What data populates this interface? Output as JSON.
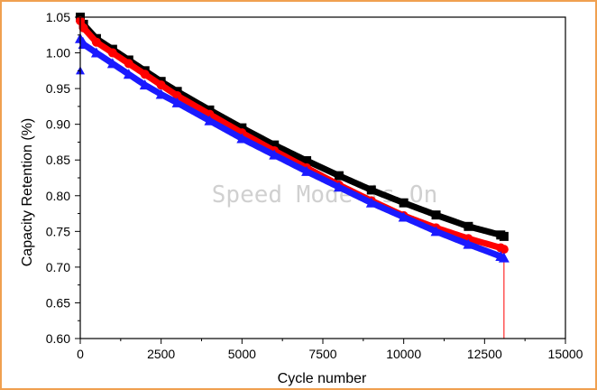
{
  "chart_data": {
    "type": "scatter",
    "title": "",
    "xlabel": "Cycle number",
    "ylabel": "Capacity Retention (%)",
    "xlim": [
      0,
      15000
    ],
    "ylim": [
      0.6,
      1.05
    ],
    "xticks": [
      0,
      2500,
      5000,
      7500,
      10000,
      12500,
      15000
    ],
    "xtick_labels": [
      "0",
      "2500",
      "5000",
      "7500",
      "10000",
      "12500",
      "15000"
    ],
    "yticks": [
      0.6,
      0.65,
      0.7,
      0.75,
      0.8,
      0.85,
      0.9,
      0.95,
      1.0,
      1.05
    ],
    "ytick_labels": [
      "0.60",
      "0.65",
      "0.70",
      "0.75",
      "0.80",
      "0.85",
      "0.90",
      "0.95",
      "1.00",
      "1.05"
    ],
    "grid": false,
    "watermark": "Speed Mode is On",
    "series": [
      {
        "name": "black",
        "color": "#000000",
        "marker": "square",
        "x": [
          0,
          100,
          500,
          1000,
          1500,
          2000,
          2500,
          3000,
          4000,
          5000,
          6000,
          7000,
          8000,
          9000,
          10000,
          11000,
          12000,
          13000,
          13100
        ],
        "y": [
          1.05,
          1.04,
          1.02,
          1.005,
          0.99,
          0.975,
          0.96,
          0.946,
          0.92,
          0.895,
          0.871,
          0.849,
          0.828,
          0.808,
          0.79,
          0.773,
          0.757,
          0.745,
          0.743
        ]
      },
      {
        "name": "red",
        "color": "#ff0000",
        "marker": "circle",
        "x": [
          0,
          100,
          500,
          1000,
          1500,
          2000,
          2500,
          3000,
          4000,
          5000,
          6000,
          7000,
          8000,
          9000,
          10000,
          11000,
          12000,
          13000,
          13100
        ],
        "y": [
          1.045,
          1.035,
          1.015,
          1.0,
          0.985,
          0.97,
          0.955,
          0.94,
          0.914,
          0.888,
          0.863,
          0.839,
          0.815,
          0.793,
          0.772,
          0.755,
          0.74,
          0.727,
          0.725
        ],
        "drop_line": {
          "x": 13100,
          "y_from": 0.725,
          "y_to": 0.6
        }
      },
      {
        "name": "blue",
        "color": "#1a1aff",
        "marker": "triangle",
        "x": [
          0,
          100,
          500,
          1000,
          1500,
          2000,
          2500,
          3000,
          4000,
          5000,
          6000,
          7000,
          8000,
          9000,
          10000,
          11000,
          12000,
          13000,
          13100
        ],
        "y": [
          1.02,
          1.012,
          1.0,
          0.985,
          0.97,
          0.955,
          0.942,
          0.93,
          0.905,
          0.88,
          0.857,
          0.834,
          0.812,
          0.79,
          0.77,
          0.75,
          0.732,
          0.715,
          0.713
        ],
        "outliers": [
          {
            "x": 0,
            "y": 0.975
          }
        ]
      }
    ]
  }
}
